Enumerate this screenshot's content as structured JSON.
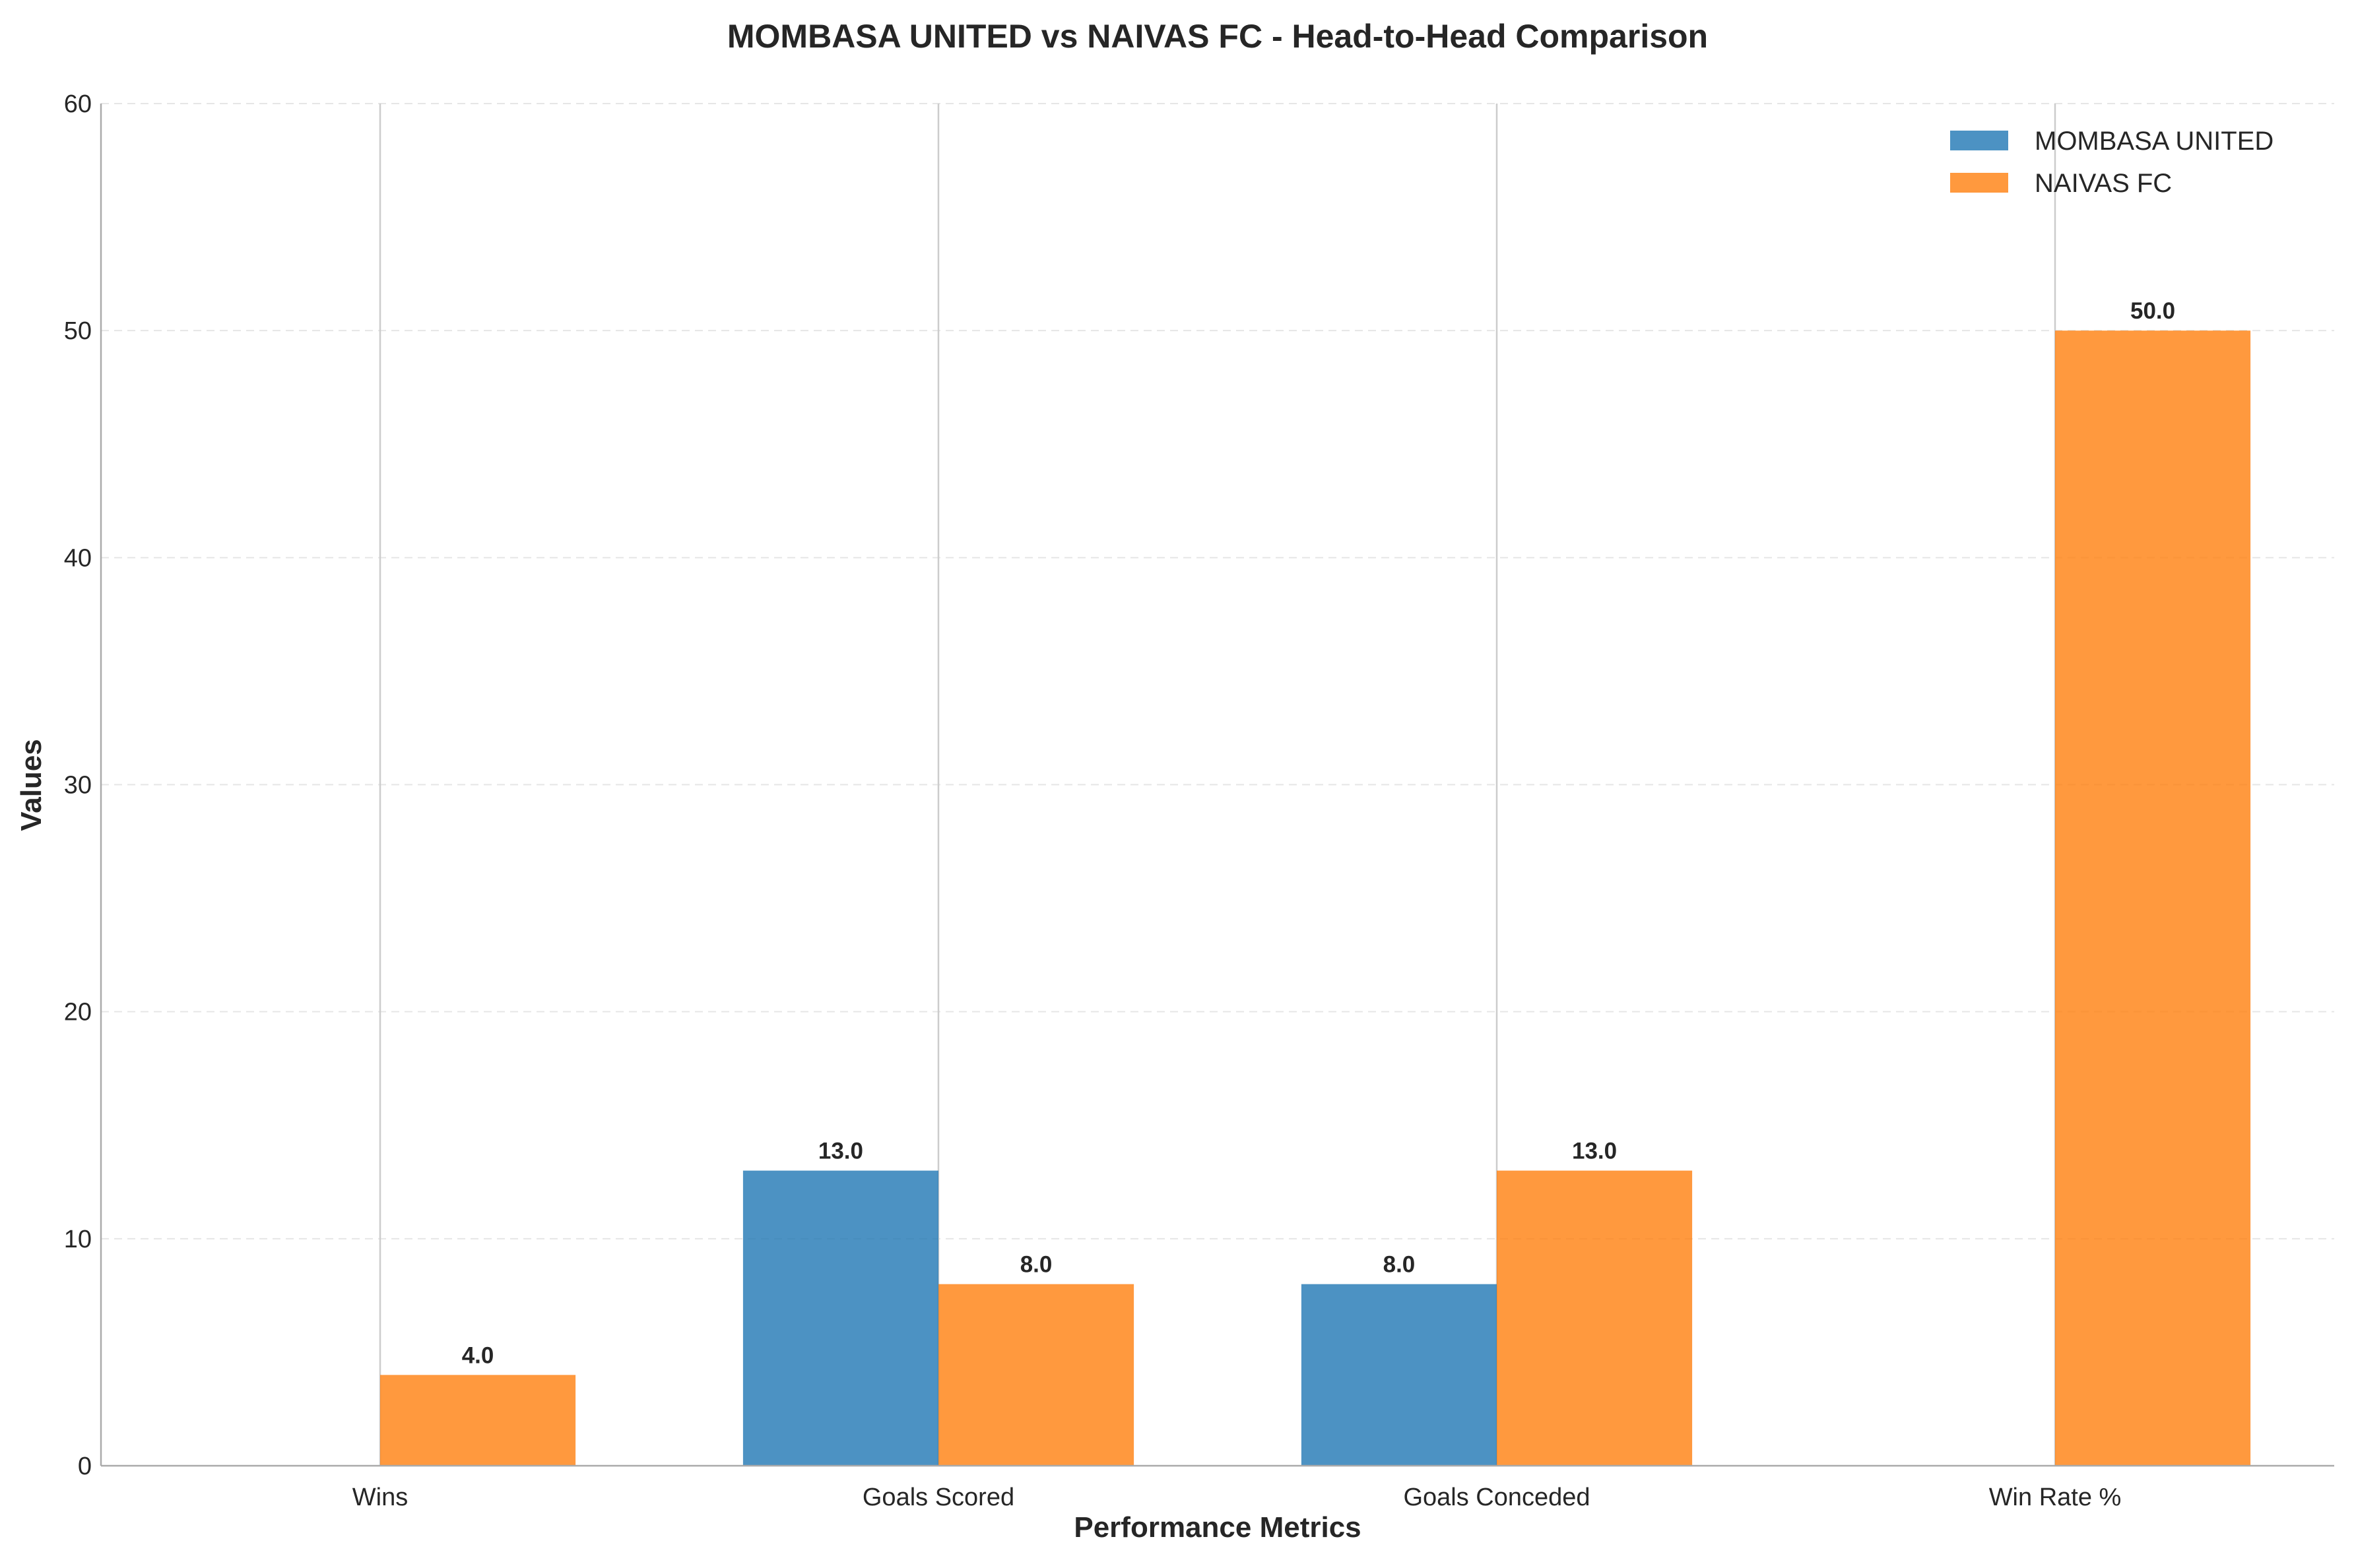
{
  "chart_data": {
    "type": "bar",
    "title": "MOMBASA UNITED vs NAIVAS FC - Head-to-Head Comparison",
    "xlabel": "Performance Metrics",
    "ylabel": "Values",
    "categories": [
      "Wins",
      "Goals Scored",
      "Goals Conceded",
      "Win Rate %"
    ],
    "series": [
      {
        "name": "MOMBASA UNITED",
        "color": "#1f77b4",
        "values": [
          0,
          13,
          8,
          0
        ]
      },
      {
        "name": "NAIVAS FC",
        "color": "#ff7f0e",
        "values": [
          4,
          8,
          13,
          50
        ]
      }
    ],
    "ylim": [
      0,
      60
    ],
    "yticks": [
      0,
      10,
      20,
      30,
      40,
      50,
      60
    ],
    "grid": "y dashed",
    "legend_position": "top-right"
  }
}
